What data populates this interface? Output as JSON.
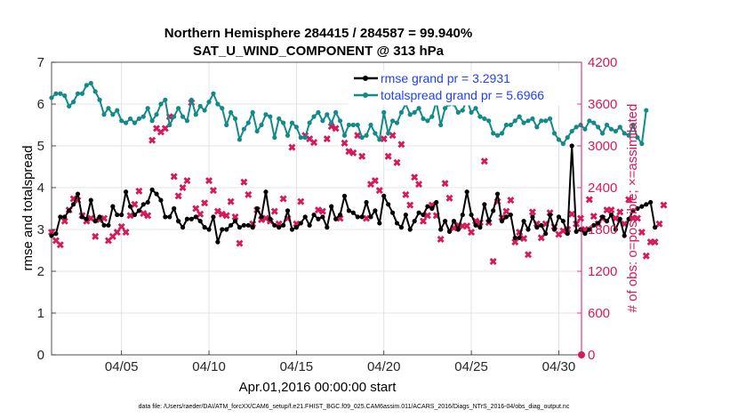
{
  "chart_data": {
    "type": "line",
    "title": "Northern Hemisphere 284415 / 284587 = 99.940%",
    "subtitle": "SAT_U_WIND_COMPONENT @ 313 hPa",
    "xlabel": "Apr.01,2016 00:00:00 start",
    "ylabel_left": "rmse and totalspread",
    "ylabel_right": "# of obs: o=possible; ×=assimilated",
    "footer": "data file: /Users/raeder/DAI/ATM_forcXX/CAM6_setup/f.e21.FHIST_BGC.f09_025.CAM6assim.011/ACARS_2016/Diags_NTrS_2016-04/obs_diag_output.nc",
    "xlim": [
      1.0,
      31.3
    ],
    "ylim_left": [
      0,
      7
    ],
    "ylim_right": [
      0,
      4200
    ],
    "x_ticks": [
      {
        "value": 5,
        "label": "04/05"
      },
      {
        "value": 10,
        "label": "04/10"
      },
      {
        "value": 15,
        "label": "04/15"
      },
      {
        "value": 20,
        "label": "04/20"
      },
      {
        "value": 25,
        "label": "04/25"
      },
      {
        "value": 30,
        "label": "04/30"
      }
    ],
    "y_ticks_left": [
      0,
      1,
      2,
      3,
      4,
      5,
      6,
      7
    ],
    "y_ticks_right": [
      0,
      600,
      1200,
      1800,
      2400,
      3000,
      3600,
      4200
    ],
    "x_start": 1.0,
    "x_step": 0.25,
    "series": [
      {
        "name": "rmse grand pr = 3.2931",
        "color": "#000000",
        "axis": "left",
        "values": [
          2.85,
          2.9,
          3.3,
          3.3,
          3.45,
          3.6,
          3.85,
          3.3,
          3.25,
          3.7,
          3.2,
          3.3,
          3.1,
          3.1,
          3.55,
          3.35,
          3.35,
          3.9,
          3.55,
          3.35,
          3.45,
          3.6,
          3.65,
          3.95,
          3.85,
          3.7,
          3.3,
          3.3,
          3.5,
          3.2,
          3.05,
          3.25,
          3.25,
          3.3,
          3.2,
          3.05,
          3.0,
          3.3,
          2.7,
          3.0,
          3.0,
          3.1,
          3.2,
          3.05,
          3.1,
          3.1,
          3.05,
          3.5,
          3.3,
          3.9,
          3.25,
          3.1,
          3.05,
          3.1,
          3.45,
          3.0,
          3.05,
          3.15,
          3.3,
          3.1,
          3.35,
          3.25,
          3.3,
          3.05,
          3.55,
          3.25,
          3.35,
          3.8,
          3.45,
          3.4,
          3.3,
          3.3,
          3.65,
          3.3,
          3.45,
          3.15,
          3.8,
          3.6,
          3.4,
          3.15,
          3.05,
          3.35,
          3.0,
          3.2,
          3.4,
          3.35,
          3.55,
          3.5,
          3.65,
          3.0,
          3.2,
          2.95,
          3.2,
          3.0,
          3.35,
          3.9,
          3.35,
          3.1,
          3.05,
          3.6,
          3.2,
          3.45,
          3.85,
          3.2,
          3.3,
          3.35,
          2.8,
          2.8,
          3.2,
          3.0,
          3.3,
          3.05,
          3.1,
          2.9,
          3.35,
          3.0,
          3.3,
          3.2,
          2.9,
          5.0,
          2.95,
          3.0,
          2.9,
          3.0,
          3.1,
          3.15,
          3.3,
          3.2,
          3.35,
          3.0,
          3.25,
          2.85,
          3.25,
          3.45,
          3.5,
          3.55,
          3.6,
          3.65,
          3.05
        ]
      },
      {
        "name": "totalspread grand pr = 5.6966",
        "color": "#138a8a",
        "axis": "left",
        "values": [
          6.15,
          6.25,
          6.25,
          6.2,
          5.95,
          6.05,
          6.25,
          6.25,
          6.45,
          6.5,
          6.3,
          6.1,
          5.75,
          5.9,
          5.75,
          5.85,
          5.6,
          5.55,
          5.65,
          5.55,
          5.65,
          5.7,
          5.9,
          5.6,
          5.75,
          6.0,
          6.1,
          5.5,
          5.7,
          5.9,
          5.7,
          5.6,
          6.1,
          5.75,
          5.95,
          5.85,
          6.05,
          6.25,
          6.0,
          5.9,
          5.5,
          5.8,
          5.65,
          5.15,
          5.4,
          5.55,
          5.8,
          5.35,
          5.5,
          5.75,
          5.7,
          5.2,
          5.65,
          5.55,
          5.25,
          5.55,
          5.45,
          5.2,
          5.2,
          5.55,
          5.7,
          5.8,
          5.6,
          5.75,
          5.55,
          5.8,
          5.6,
          5.25,
          5.5,
          5.5,
          5.5,
          5.2,
          5.25,
          5.5,
          5.3,
          5.15,
          5.8,
          5.3,
          5.6,
          5.55,
          5.8,
          6.0,
          5.75,
          5.8,
          5.9,
          5.65,
          5.6,
          5.7,
          6.05,
          5.5,
          5.9,
          6.0,
          6.0,
          5.8,
          5.85,
          6.1,
          5.8,
          5.9,
          5.7,
          5.65,
          5.6,
          5.3,
          5.25,
          5.3,
          5.5,
          5.5,
          5.6,
          5.7,
          5.55,
          5.6,
          5.65,
          5.45,
          5.6,
          5.6,
          5.65,
          5.3,
          5.15,
          5.05,
          5.2,
          5.35,
          5.45,
          5.5,
          5.4,
          5.6,
          5.55,
          5.45,
          5.3,
          5.5,
          5.4,
          5.35,
          5.45,
          5.3,
          5.25,
          5.5,
          5.2,
          5.05,
          5.85
        ]
      }
    ],
    "obs_assimilated": {
      "name": "assimilated obs count",
      "color": "#d6195c",
      "axis": "right",
      "marker": "×",
      "values": [
        1760,
        1640,
        1580,
        1920,
        2080,
        2240,
        2220,
        2000,
        1920,
        1960,
        1700,
        1940,
        1960,
        1640,
        1700,
        1760,
        1840,
        1760,
        2000,
        2160,
        2350,
        2030,
        2000,
        3080,
        3250,
        3200,
        3250,
        3420,
        2560,
        2280,
        2400,
        2500,
        3620,
        2100,
        2020,
        2180,
        2500,
        2360,
        2060,
        2020,
        2000,
        2200,
        1980,
        1600,
        2480,
        2300,
        1880,
        2080,
        1940,
        1960,
        1920,
        2060,
        1880,
        2240,
        1960,
        2980,
        1880,
        2200,
        3150,
        3100,
        3050,
        2080,
        2060,
        3100,
        3280,
        3250,
        1960,
        3040,
        2920,
        2900,
        3150,
        2850,
        1960,
        2450,
        2500,
        2360,
        3100,
        2850,
        3150,
        2760,
        3020,
        2300,
        2150,
        2550,
        2450,
        1920,
        2000,
        2150,
        2000,
        1660,
        2460,
        2250,
        1820,
        1860,
        1850,
        1850,
        1760,
        1920,
        1900,
        2780,
        1900,
        1340,
        2200,
        1970,
        2060,
        2220,
        1620,
        1760,
        1670,
        1440,
        2050,
        1880,
        1680,
        1880,
        2040,
        1840,
        1730,
        1780,
        1800,
        2020,
        1880,
        1960,
        1800,
        2230,
        1990,
        1880,
        1960,
        2080,
        2080,
        1960,
        2050,
        1880,
        2230,
        1960,
        1960,
        1760,
        1420,
        1620,
        1620,
        1880,
        2150
      ]
    },
    "obs_possible": {
      "name": "possible obs count",
      "color": "#d6195c",
      "axis": "right",
      "marker": "o",
      "values": [
        0
      ]
    }
  },
  "legend": {
    "rmse": "rmse grand pr = 3.2931",
    "totalspread": "totalspread grand pr = 5.6966"
  }
}
